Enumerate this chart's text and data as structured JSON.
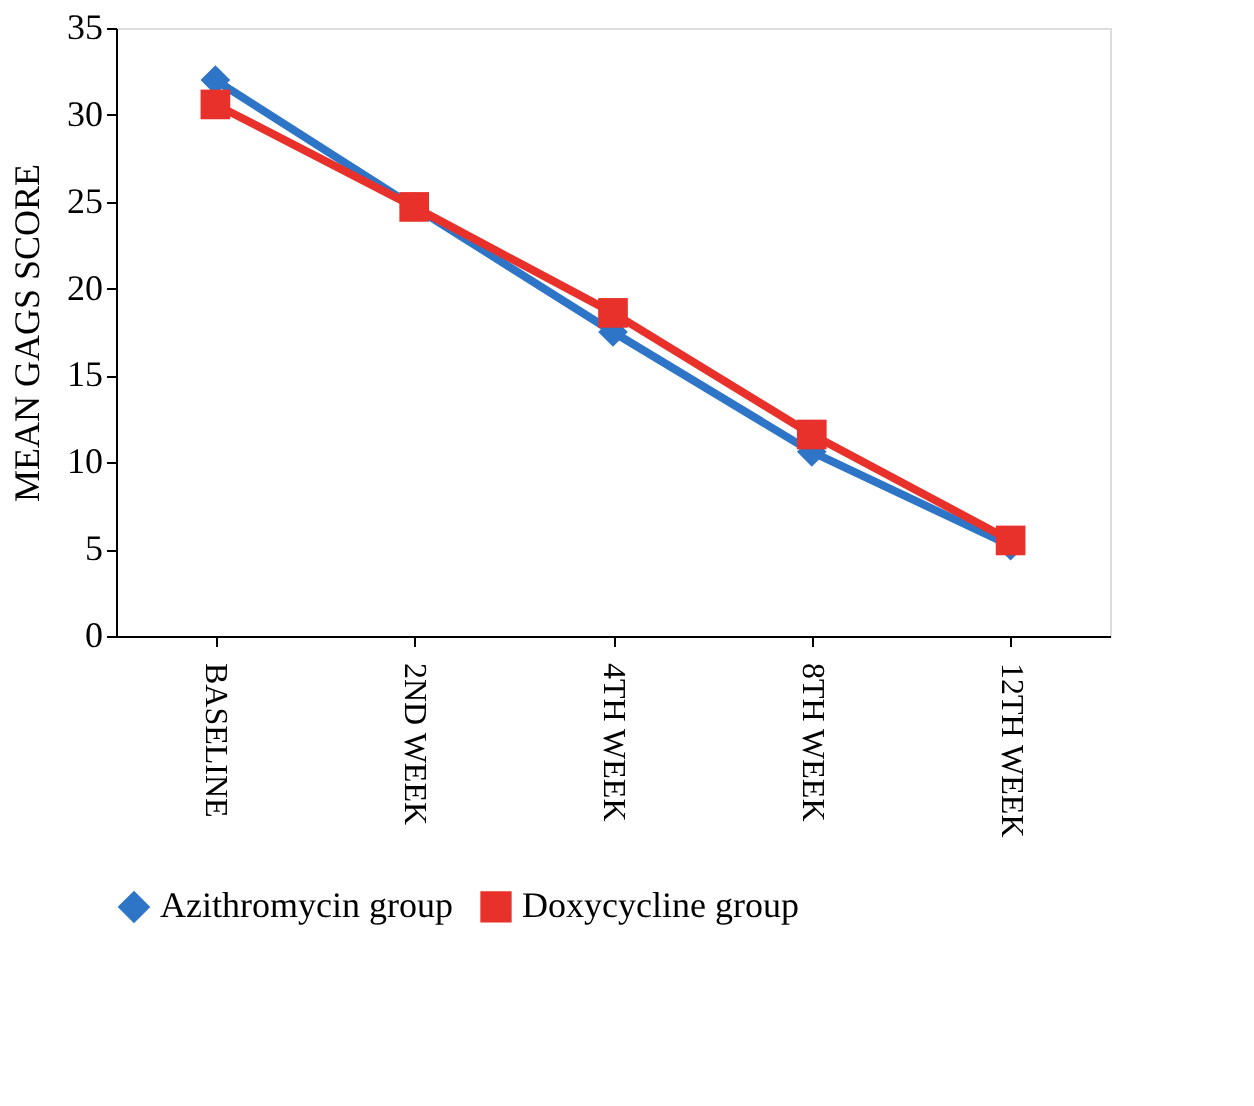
{
  "chart_data": {
    "type": "line",
    "ylabel": "MEAN GAGS SCORE",
    "categories": [
      "BASELINE",
      "2ND WEEK",
      "4TH WEEK",
      "8TH WEEK",
      "12TH WEEK"
    ],
    "series": [
      {
        "name": "Azithromycin group",
        "color": "#2e75c8",
        "marker": "diamond",
        "values": [
          32.0,
          24.7,
          17.5,
          10.6,
          5.2
        ]
      },
      {
        "name": "Doxycycline group",
        "color": "#e8312a",
        "marker": "square",
        "values": [
          30.6,
          24.7,
          18.6,
          11.6,
          5.5
        ]
      }
    ],
    "ylim": [
      0,
      35
    ],
    "yticks": [
      0,
      5,
      10,
      15,
      20,
      25,
      30,
      35
    ],
    "grid": false,
    "legend": "bottom"
  }
}
